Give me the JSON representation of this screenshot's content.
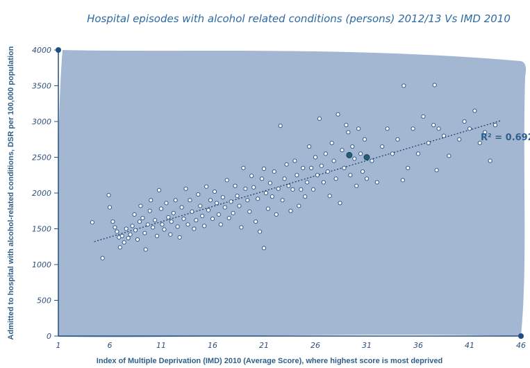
{
  "chart_data": {
    "type": "scatter",
    "title": "Hospital episodes with alcohol related conditions (persons) 2012/13 Vs IMD 2010",
    "xlabel": "Index of Multiple Deprivation (IMD) 2010 (Average Score),  where highest score is most deprived",
    "ylabel": "Admitted to hospital with alcohol-related conditions, DSR per 100,000 population",
    "xlim": [
      1,
      46
    ],
    "ylim": [
      0,
      4000
    ],
    "xticks": [
      "1",
      "6",
      "11",
      "16",
      "21",
      "26",
      "31",
      "36",
      "41",
      "46"
    ],
    "yticks": [
      "0",
      "500",
      "1000",
      "1500",
      "2000",
      "2500",
      "3000",
      "3500",
      "4000"
    ],
    "trendline": {
      "x": [
        4.5,
        44
      ],
      "y": [
        1320,
        3010
      ]
    },
    "r_squared_label": "R² = 0.692",
    "highlighted_points": [
      {
        "x": 29.3,
        "y": 2530
      },
      {
        "x": 31.0,
        "y": 2500
      }
    ],
    "points": [
      [
        4.3,
        1590
      ],
      [
        5.3,
        1090
      ],
      [
        5.9,
        1970
      ],
      [
        6.0,
        1800
      ],
      [
        6.3,
        1600
      ],
      [
        6.5,
        1520
      ],
      [
        6.7,
        1460
      ],
      [
        6.9,
        1380
      ],
      [
        7.0,
        1240
      ],
      [
        7.2,
        1400
      ],
      [
        7.4,
        1310
      ],
      [
        7.6,
        1500
      ],
      [
        7.8,
        1370
      ],
      [
        8.0,
        1420
      ],
      [
        8.2,
        1540
      ],
      [
        8.4,
        1700
      ],
      [
        8.5,
        1480
      ],
      [
        8.7,
        1350
      ],
      [
        8.9,
        1600
      ],
      [
        9.0,
        1820
      ],
      [
        9.2,
        1650
      ],
      [
        9.4,
        1440
      ],
      [
        9.5,
        1210
      ],
      [
        9.7,
        1560
      ],
      [
        9.9,
        1750
      ],
      [
        10.0,
        1900
      ],
      [
        10.2,
        1520
      ],
      [
        10.4,
        1620
      ],
      [
        10.6,
        1400
      ],
      [
        10.8,
        2040
      ],
      [
        11.0,
        1780
      ],
      [
        11.1,
        1560
      ],
      [
        11.3,
        1490
      ],
      [
        11.5,
        1860
      ],
      [
        11.7,
        1660
      ],
      [
        11.9,
        1420
      ],
      [
        12.0,
        1600
      ],
      [
        12.2,
        1720
      ],
      [
        12.4,
        1900
      ],
      [
        12.6,
        1530
      ],
      [
        12.8,
        1380
      ],
      [
        13.0,
        1800
      ],
      [
        13.2,
        1640
      ],
      [
        13.4,
        2060
      ],
      [
        13.6,
        1560
      ],
      [
        13.8,
        1900
      ],
      [
        14.0,
        1740
      ],
      [
        14.2,
        1500
      ],
      [
        14.4,
        1620
      ],
      [
        14.6,
        1980
      ],
      [
        14.8,
        1820
      ],
      [
        15.0,
        1680
      ],
      [
        15.2,
        1540
      ],
      [
        15.4,
        2090
      ],
      [
        15.6,
        1760
      ],
      [
        15.8,
        1900
      ],
      [
        16.0,
        1640
      ],
      [
        16.2,
        2020
      ],
      [
        16.4,
        1860
      ],
      [
        16.6,
        1700
      ],
      [
        16.8,
        1560
      ],
      [
        17.0,
        1940
      ],
      [
        17.2,
        1800
      ],
      [
        17.4,
        2180
      ],
      [
        17.6,
        1650
      ],
      [
        17.8,
        1880
      ],
      [
        18.0,
        1720
      ],
      [
        18.2,
        2100
      ],
      [
        18.4,
        1960
      ],
      [
        18.6,
        1820
      ],
      [
        18.8,
        1520
      ],
      [
        19.0,
        2350
      ],
      [
        19.2,
        2060
      ],
      [
        19.4,
        1900
      ],
      [
        19.6,
        1740
      ],
      [
        19.8,
        2240
      ],
      [
        20.0,
        2080
      ],
      [
        20.2,
        1600
      ],
      [
        20.4,
        1920
      ],
      [
        20.6,
        1460
      ],
      [
        20.8,
        2200
      ],
      [
        21.0,
        2340
      ],
      [
        21.0,
        1230
      ],
      [
        21.2,
        2000
      ],
      [
        21.4,
        1780
      ],
      [
        21.6,
        2140
      ],
      [
        21.8,
        1950
      ],
      [
        22.0,
        2300
      ],
      [
        22.2,
        1700
      ],
      [
        22.4,
        2060
      ],
      [
        22.6,
        2940
      ],
      [
        22.8,
        1900
      ],
      [
        23.0,
        2200
      ],
      [
        23.2,
        2400
      ],
      [
        23.4,
        2100
      ],
      [
        23.6,
        1750
      ],
      [
        23.8,
        2050
      ],
      [
        24.0,
        2450
      ],
      [
        24.2,
        2250
      ],
      [
        24.4,
        1820
      ],
      [
        24.6,
        2050
      ],
      [
        24.8,
        2350
      ],
      [
        25.0,
        1950
      ],
      [
        25.2,
        2150
      ],
      [
        25.4,
        2650
      ],
      [
        25.6,
        2350
      ],
      [
        25.8,
        2050
      ],
      [
        26.0,
        2500
      ],
      [
        26.2,
        2250
      ],
      [
        26.4,
        3040
      ],
      [
        26.6,
        2380
      ],
      [
        26.8,
        2150
      ],
      [
        27.0,
        2550
      ],
      [
        27.2,
        2300
      ],
      [
        27.4,
        1960
      ],
      [
        27.6,
        2700
      ],
      [
        27.8,
        2450
      ],
      [
        28.0,
        2200
      ],
      [
        28.2,
        3100
      ],
      [
        28.4,
        1860
      ],
      [
        28.6,
        2600
      ],
      [
        28.8,
        2350
      ],
      [
        29.0,
        2950
      ],
      [
        29.2,
        2850
      ],
      [
        29.4,
        2250
      ],
      [
        29.6,
        2650
      ],
      [
        29.8,
        2480
      ],
      [
        30.0,
        2100
      ],
      [
        30.2,
        2900
      ],
      [
        30.4,
        2550
      ],
      [
        30.6,
        2300
      ],
      [
        30.8,
        2750
      ],
      [
        31.0,
        2200
      ],
      [
        31.5,
        2450
      ],
      [
        32.0,
        2150
      ],
      [
        32.5,
        2650
      ],
      [
        33.0,
        2900
      ],
      [
        33.5,
        2550
      ],
      [
        34.0,
        2750
      ],
      [
        34.5,
        2180
      ],
      [
        34.6,
        3500
      ],
      [
        35.0,
        2350
      ],
      [
        35.5,
        2900
      ],
      [
        36.0,
        2550
      ],
      [
        36.5,
        3070
      ],
      [
        37.0,
        2700
      ],
      [
        37.5,
        2950
      ],
      [
        37.6,
        3510
      ],
      [
        37.8,
        2320
      ],
      [
        38.5,
        2800
      ],
      [
        39.0,
        2520
      ],
      [
        40.0,
        2750
      ],
      [
        40.5,
        3000
      ],
      [
        41.0,
        2900
      ],
      [
        41.5,
        3150
      ],
      [
        42.0,
        2700
      ],
      [
        42.5,
        2850
      ],
      [
        43.0,
        2450
      ],
      [
        43.5,
        2950
      ],
      [
        38.0,
        2900
      ]
    ]
  }
}
